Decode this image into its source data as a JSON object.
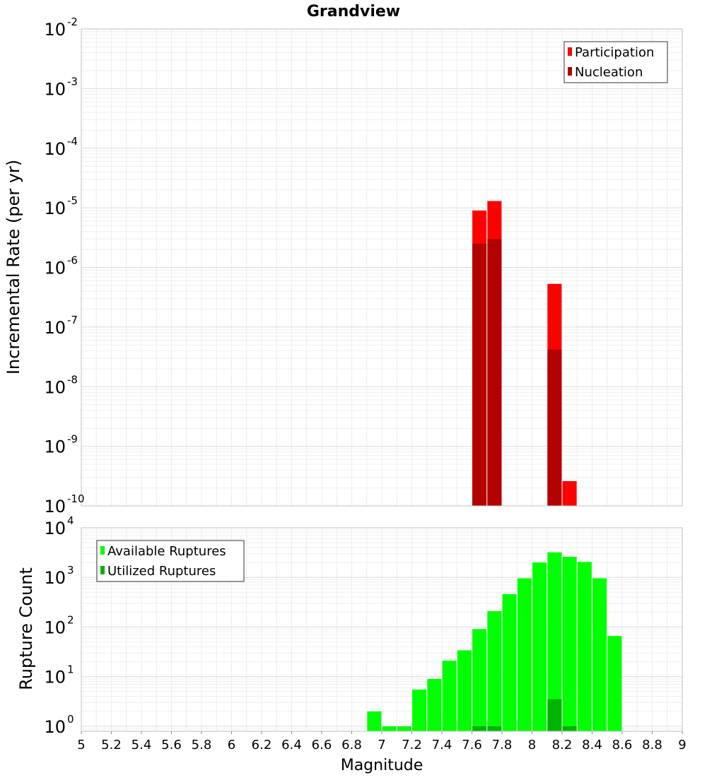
{
  "chart_data": [
    {
      "type": "bar",
      "title": "Grandview",
      "ylabel": "Incremental Rate (per yr)",
      "xlabel": "",
      "yscale": "log",
      "ylim_exponents": [
        -10,
        -2
      ],
      "xlim": [
        5,
        9
      ],
      "grid": true,
      "legend_position": "top-right",
      "legend": [
        "Participation",
        "Nucleation"
      ],
      "colors": {
        "Participation": "#ff0000",
        "Nucleation": "#b30000"
      },
      "x": [
        7.65,
        7.75,
        8.15,
        8.25
      ],
      "series": [
        {
          "name": "Participation",
          "values": [
            9e-06,
            1.3e-05,
            5.3e-07,
            2.6e-10
          ]
        },
        {
          "name": "Nucleation",
          "values": [
            2.5e-06,
            3e-06,
            4.2e-08,
            null
          ]
        }
      ]
    },
    {
      "type": "bar",
      "title": "",
      "ylabel": "Rupture Count",
      "xlabel": "Magnitude",
      "yscale": "log",
      "ylim_exponents": [
        -0.1,
        4
      ],
      "xlim": [
        5,
        9
      ],
      "grid": true,
      "legend_position": "top-left",
      "legend": [
        "Available Ruptures",
        "Utilized Ruptures"
      ],
      "colors": {
        "Available Ruptures": "#00ff00",
        "Utilized Ruptures": "#00b300"
      },
      "x": [
        6.95,
        7.05,
        7.15,
        7.25,
        7.35,
        7.45,
        7.55,
        7.65,
        7.75,
        7.85,
        7.95,
        8.05,
        8.15,
        8.25,
        8.35,
        8.45,
        8.55
      ],
      "series": [
        {
          "name": "Available Ruptures",
          "values": [
            2,
            1,
            1,
            5.5,
            9,
            21,
            34,
            91,
            210,
            460,
            960,
            2000,
            3200,
            2600,
            2050,
            960,
            66
          ]
        },
        {
          "name": "Utilized Ruptures",
          "values": [
            null,
            null,
            null,
            null,
            null,
            null,
            null,
            1,
            1,
            null,
            null,
            null,
            3.5,
            1,
            null,
            null,
            null
          ]
        }
      ],
      "x_ticks": [
        "5",
        "5.2",
        "5.4",
        "5.6",
        "5.8",
        "6",
        "6.2",
        "6.4",
        "6.6",
        "6.8",
        "7",
        "7.2",
        "7.4",
        "7.6",
        "7.8",
        "8",
        "8.2",
        "8.4",
        "8.6",
        "8.8",
        "9"
      ]
    }
  ]
}
